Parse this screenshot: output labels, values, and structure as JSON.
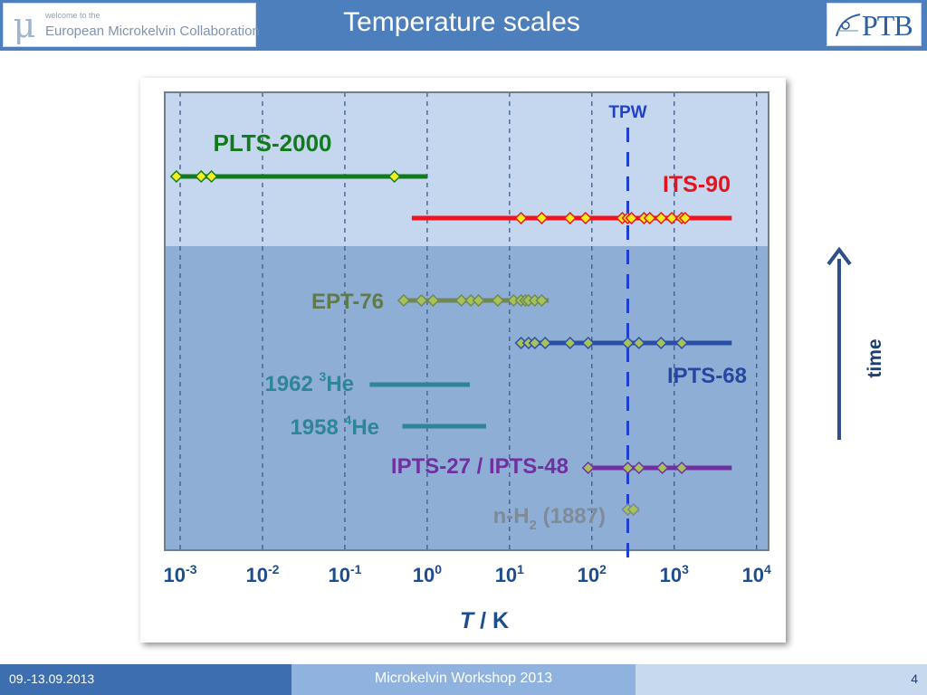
{
  "header": {
    "title": "Temperature scales",
    "logo_left": {
      "welcome": "welcome to the",
      "name": "European Microkelvin Collaboration"
    },
    "logo_right": {
      "name": "PTB"
    }
  },
  "footer": {
    "date": "09.-13.09.2013",
    "event": "Microkelvin Workshop 2013",
    "page": "4"
  },
  "chart_data": {
    "type": "timeline-range",
    "x_scale": "log",
    "xlim": [
      0.00065,
      14000
    ],
    "x_tick_values": [
      0.001,
      0.01,
      0.1,
      1,
      10,
      100,
      1000,
      10000
    ],
    "x_tick_bases": [
      "10",
      "10",
      "10",
      "10",
      "10",
      "10",
      "10",
      "10"
    ],
    "x_tick_exponents": [
      "-3",
      "-2",
      "-1",
      "0",
      "1",
      "2",
      "3",
      "4"
    ],
    "xlabel_italic": "T",
    "xlabel_rest": " / K",
    "grid": "vertical dashed at decades",
    "tpw": {
      "label": "TPW",
      "value": 273.16,
      "color": "#1f3fd1"
    },
    "time_arrow": {
      "label": "time",
      "color": "#2d4f8a"
    },
    "current_region_color": "#c5d7ee",
    "historic_region_color": "#8faed6",
    "scales": [
      {
        "name": "PLTS-2000",
        "sub": "",
        "rest": "",
        "color": "#117a1c",
        "label_color": "#117a1c",
        "range": [
          0.0009,
          1.0
        ],
        "points": [
          0.0009,
          0.0018,
          0.0024,
          0.4
        ],
        "point_color": "#f4ee1e"
      },
      {
        "name": "ITS-90",
        "sub": "",
        "rest": "",
        "color": "#f0121e",
        "label_color": "#e3141e",
        "range": [
          0.65,
          5000
        ],
        "points": [
          13.8,
          24.6,
          54.4,
          83.8,
          234.3,
          273.16,
          302.9,
          429.7,
          505.1,
          692.7,
          933.5,
          1234.9,
          1357.8
        ],
        "point_color": "#f4ee1e"
      },
      {
        "name": "EPT-76",
        "sub": "",
        "rest": "",
        "color": "#6f8856",
        "label_color": "#5f7a4b",
        "range": [
          0.5,
          30
        ],
        "points": [
          0.519,
          0.851,
          1.1796,
          2.6,
          3.4,
          4.2,
          7.2,
          11.2,
          13.8,
          15.6,
          17.0,
          20.3,
          24.6
        ],
        "point_color": "#a7c25a"
      },
      {
        "name": "IPTS-68",
        "sub": "",
        "rest": "",
        "color": "#2a4da8",
        "label_color": "#25479e",
        "range": [
          13.81,
          5000
        ],
        "points": [
          13.81,
          17.04,
          20.28,
          27.1,
          54.36,
          90.19,
          273.16,
          373.15,
          692.7,
          1235
        ],
        "point_color": "#a7c25a"
      },
      {
        "name": "1962 ",
        "sup": "3",
        "rest": "He",
        "color": "#2e8599",
        "label_color": "#2e8599",
        "range": [
          0.2,
          3.3
        ],
        "points": [],
        "point_color": ""
      },
      {
        "name": "1958 ",
        "sup": "4",
        "rest": "He",
        "color": "#2e8599",
        "label_color": "#2e8599",
        "range": [
          0.5,
          5.2
        ],
        "points": [],
        "point_color": ""
      },
      {
        "name": "IPTS-27 / IPTS-48",
        "sub": "",
        "rest": "",
        "color": "#7030a0",
        "label_color": "#7030a0",
        "range": [
          90.19,
          5000
        ],
        "points": [
          90.19,
          273.16,
          373.15,
          717.8,
          1234
        ],
        "point_color": "#a7c25a"
      },
      {
        "name": "n-H",
        "sub": "2",
        "rest": " (1887)",
        "color": "#7a8794",
        "label_color": "#7f8b97",
        "range": [
          273.16,
          373.15
        ],
        "points": [
          273.16,
          320
        ],
        "point_color": "#a7c25a"
      }
    ]
  }
}
